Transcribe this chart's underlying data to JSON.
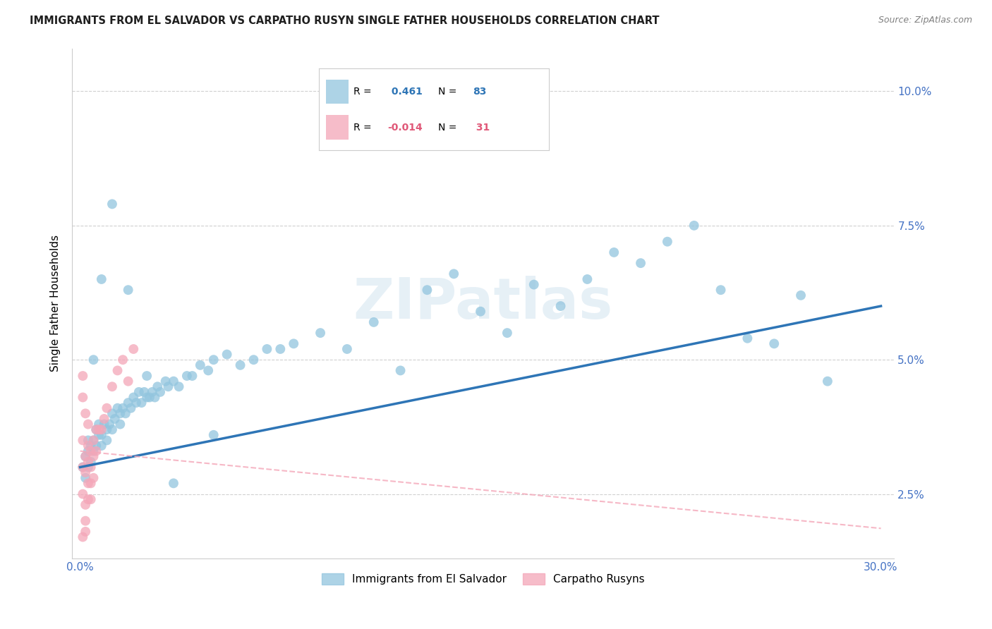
{
  "title": "IMMIGRANTS FROM EL SALVADOR VS CARPATHO RUSYN SINGLE FATHER HOUSEHOLDS CORRELATION CHART",
  "source": "Source: ZipAtlas.com",
  "ylabel": "Single Father Households",
  "x_tick_labels": [
    "0.0%",
    "",
    "",
    "",
    "",
    "",
    "30.0%"
  ],
  "x_tick_values": [
    0.0,
    0.05,
    0.1,
    0.15,
    0.2,
    0.25,
    0.3
  ],
  "y_tick_labels": [
    "2.5%",
    "5.0%",
    "7.5%",
    "10.0%"
  ],
  "y_tick_values": [
    0.025,
    0.05,
    0.075,
    0.1
  ],
  "xlim": [
    -0.003,
    0.305
  ],
  "ylim": [
    0.013,
    0.108
  ],
  "legend1_label": "Immigrants from El Salvador",
  "legend2_label": "Carpatho Rusyns",
  "R1": 0.461,
  "N1": 83,
  "R2": -0.014,
  "N2": 31,
  "blue_color": "#92C5DE",
  "pink_color": "#F4A6B8",
  "blue_line_color": "#2E75B6",
  "pink_line_color": "#F4A6B8",
  "watermark": "ZIPatlas",
  "title_color": "#1F1F1F",
  "source_color": "#808080",
  "tick_color": "#4472C4",
  "grid_color": "#D0D0D0"
}
